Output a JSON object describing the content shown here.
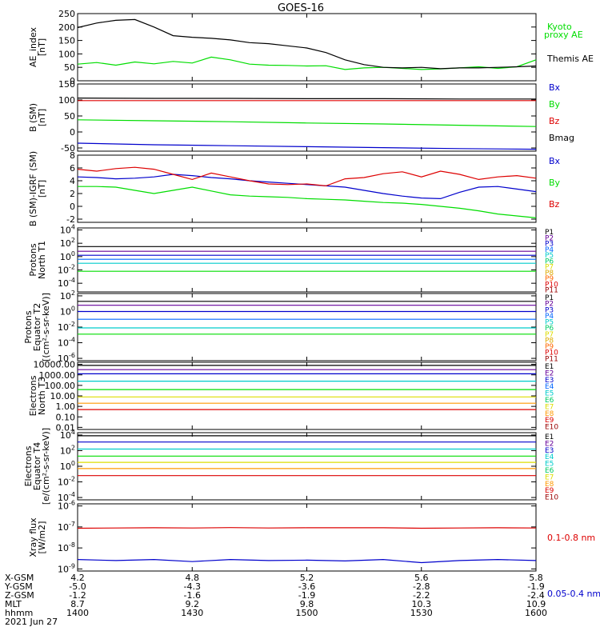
{
  "title": "GOES-16",
  "footer": {
    "row_labels": [
      "X-GSM",
      "Y-GSM",
      "Z-GSM",
      "MLT",
      "hhmm"
    ],
    "date": "2021 Jun 27",
    "columns": [
      [
        "4.2",
        "-5.0",
        "-1.2",
        "8.7",
        "1400"
      ],
      [
        "4.8",
        "-4.3",
        "-1.6",
        "9.2",
        "1430"
      ],
      [
        "5.2",
        "-3.6",
        "-1.9",
        "9.8",
        "1500"
      ],
      [
        "5.6",
        "-2.8",
        "-2.2",
        "10.3",
        "1530"
      ],
      [
        "5.8",
        "-1.9",
        "-2.4",
        "10.9",
        "1600"
      ]
    ]
  },
  "colors": {
    "black": "#000000",
    "green": "#00dd00",
    "blue": "#0000cc",
    "red": "#dd0000",
    "cyan": "#00cccc",
    "yellow": "#dddd00",
    "orange": "#ff9900",
    "purple": "#660099",
    "darkred": "#990000",
    "navy": "#000080"
  },
  "chart_data": [
    {
      "type": "line",
      "ylabel": [
        "AE_index",
        "[nT]"
      ],
      "ylim": [
        0,
        250
      ],
      "yticks": [
        "0",
        "50",
        "100",
        "150",
        "200",
        "250"
      ],
      "x": [
        0,
        5,
        10,
        15,
        20,
        25,
        30,
        35,
        40,
        45,
        50,
        55,
        60,
        65,
        70,
        75,
        80,
        85,
        90,
        95,
        100,
        105,
        110,
        115,
        120
      ],
      "series": [
        {
          "name": "Kyoto proxy AE",
          "color": "#00dd00",
          "values": [
            62,
            68,
            58,
            70,
            63,
            72,
            66,
            88,
            78,
            62,
            58,
            57,
            55,
            56,
            42,
            48,
            50,
            46,
            42,
            44,
            48,
            52,
            46,
            52,
            78
          ]
        },
        {
          "name": "Themis AE",
          "color": "#000000",
          "values": [
            198,
            215,
            225,
            228,
            200,
            168,
            162,
            158,
            152,
            142,
            138,
            130,
            122,
            105,
            78,
            60,
            50,
            48,
            50,
            45,
            48,
            48,
            50,
            52,
            55
          ]
        }
      ]
    },
    {
      "type": "line",
      "ylabel": [
        "B (SM)",
        "[nT]"
      ],
      "ylim": [
        -60,
        150
      ],
      "yticks": [
        "-50",
        "0",
        "50",
        "100",
        "150"
      ],
      "x": [
        0,
        20,
        40,
        60,
        80,
        100,
        120
      ],
      "series": [
        {
          "name": "Bx",
          "color": "#0000cc",
          "values": [
            -35,
            -40,
            -43,
            -46,
            -49,
            -52,
            -54
          ]
        },
        {
          "name": "By",
          "color": "#00dd00",
          "values": [
            38,
            35,
            32,
            28,
            25,
            21,
            17
          ]
        },
        {
          "name": "Bz",
          "color": "#dd0000",
          "values": [
            98,
            98,
            98,
            98,
            98,
            98,
            98
          ]
        },
        {
          "name": "Bmag",
          "color": "#000000",
          "values": [
            106,
            105,
            105,
            104,
            104,
            103,
            103
          ]
        }
      ]
    },
    {
      "type": "line",
      "ylabel": [
        "B (SM)-IGRF (SM)",
        "[nT]"
      ],
      "ylim": [
        -2.5,
        8
      ],
      "yticks": [
        "-2",
        "0",
        "2",
        "4",
        "6",
        "8"
      ],
      "x": [
        0,
        5,
        10,
        15,
        20,
        25,
        30,
        35,
        40,
        45,
        50,
        55,
        60,
        65,
        70,
        75,
        80,
        85,
        90,
        95,
        100,
        105,
        110,
        115,
        120
      ],
      "series": [
        {
          "name": "Bx",
          "color": "#0000cc",
          "values": [
            4.6,
            4.5,
            4.3,
            4.4,
            4.6,
            5.0,
            4.8,
            4.5,
            4.3,
            4.0,
            3.8,
            3.6,
            3.4,
            3.2,
            3.0,
            2.5,
            2.0,
            1.6,
            1.3,
            1.2,
            2.2,
            3.0,
            3.1,
            2.7,
            2.3
          ]
        },
        {
          "name": "By",
          "color": "#00dd00",
          "values": [
            3.1,
            3.1,
            3.0,
            2.5,
            2.0,
            2.5,
            3.0,
            2.4,
            1.8,
            1.6,
            1.5,
            1.4,
            1.2,
            1.1,
            1.0,
            0.8,
            0.6,
            0.5,
            0.3,
            0.0,
            -0.3,
            -0.7,
            -1.2,
            -1.5,
            -1.8
          ]
        },
        {
          "name": "Bz",
          "color": "#dd0000",
          "values": [
            5.8,
            5.5,
            5.9,
            6.1,
            5.8,
            5.0,
            4.2,
            5.2,
            4.6,
            4.0,
            3.5,
            3.4,
            3.5,
            3.2,
            4.3,
            4.5,
            5.1,
            5.4,
            4.6,
            5.5,
            5.0,
            4.2,
            4.6,
            4.8,
            4.4
          ]
        }
      ]
    },
    {
      "type": "line",
      "ylabel": [
        "Protons",
        "North T1"
      ],
      "yscale": "log",
      "ylim": [
        -5.3,
        4.3
      ],
      "yticks": [
        {
          "exp": 4,
          "label": "10^4"
        },
        {
          "exp": 2,
          "label": "10^2"
        },
        {
          "exp": 0,
          "label": "10^0"
        },
        {
          "exp": -2,
          "label": "10^-2"
        },
        {
          "exp": -4,
          "label": "10^-4"
        }
      ],
      "x": [
        0,
        120
      ],
      "series": [
        {
          "name": "P1",
          "color": "#000000",
          "values": [
            1.5,
            1.5
          ]
        },
        {
          "name": "P2",
          "color": "#660099",
          "values": [
            0.8,
            0.8
          ]
        },
        {
          "name": "P3",
          "color": "#0000cc",
          "values": [
            0.2,
            0.2
          ]
        },
        {
          "name": "P4",
          "color": "#0066ff",
          "values": [
            -0.4,
            -0.4
          ]
        },
        {
          "name": "P5",
          "color": "#00cccc",
          "values": [
            -1.0,
            -1.0
          ]
        },
        {
          "name": "P6",
          "color": "#00dd00",
          "values": [
            -2.2,
            -2.2
          ]
        }
      ],
      "legend": [
        {
          "label": "P1",
          "color": "#000000"
        },
        {
          "label": "P2",
          "color": "#660099"
        },
        {
          "label": "P3",
          "color": "#0000cc"
        },
        {
          "label": "P4",
          "color": "#0066ff"
        },
        {
          "label": "P5",
          "color": "#00cccc"
        },
        {
          "label": "P6",
          "color": "#00cc66"
        },
        {
          "label": "P7",
          "color": "#dddd00"
        },
        {
          "label": "P8",
          "color": "#ddaa00"
        },
        {
          "label": "P9",
          "color": "#ff6600"
        },
        {
          "label": "P10",
          "color": "#dd0000"
        },
        {
          "label": "P11",
          "color": "#990000"
        }
      ]
    },
    {
      "type": "line",
      "ylabel": [
        "Protons",
        "Equator T2",
        "[(cm²-s-sr-keV)]"
      ],
      "yscale": "log",
      "ylim": [
        -6.3,
        2.3
      ],
      "yticks": [
        {
          "exp": 2,
          "label": "10^2"
        },
        {
          "exp": 0,
          "label": "10^0"
        },
        {
          "exp": -2,
          "label": "10^-2"
        },
        {
          "exp": -4,
          "label": "10^-4"
        },
        {
          "exp": -6,
          "label": "10^-6"
        }
      ],
      "x": [
        0,
        120
      ],
      "series": [
        {
          "name": "P1",
          "color": "#000000",
          "values": [
            1.3,
            1.3
          ]
        },
        {
          "name": "P2",
          "color": "#660099",
          "values": [
            0.8,
            0.8
          ]
        },
        {
          "name": "P3",
          "color": "#0000cc",
          "values": [
            0.0,
            0.0
          ]
        },
        {
          "name": "P4",
          "color": "#0066ff",
          "values": [
            -1.0,
            -1.0
          ]
        },
        {
          "name": "P5",
          "color": "#00cccc",
          "values": [
            -2.1,
            -2.1
          ]
        },
        {
          "name": "P6",
          "color": "#00dd00",
          "values": [
            -2.9,
            -2.9
          ]
        }
      ],
      "legend": [
        {
          "label": "P1",
          "color": "#000000"
        },
        {
          "label": "P2",
          "color": "#660099"
        },
        {
          "label": "P3",
          "color": "#0000cc"
        },
        {
          "label": "P4",
          "color": "#0066ff"
        },
        {
          "label": "P5",
          "color": "#00cccc"
        },
        {
          "label": "P6",
          "color": "#00cc66"
        },
        {
          "label": "P7",
          "color": "#dddd00"
        },
        {
          "label": "P8",
          "color": "#ddaa00"
        },
        {
          "label": "P9",
          "color": "#ff6600"
        },
        {
          "label": "P10",
          "color": "#dd0000"
        },
        {
          "label": "P11",
          "color": "#990000"
        }
      ]
    },
    {
      "type": "line",
      "ylabel": [
        "Electrons",
        "North T3"
      ],
      "yscale": "log",
      "ylim": [
        -2.2,
        4.2
      ],
      "yticks": [
        {
          "exp": 4,
          "label": "10000.00"
        },
        {
          "exp": 3,
          "label": "1000.00"
        },
        {
          "exp": 2,
          "label": "100.00"
        },
        {
          "exp": 1,
          "label": "10.00"
        },
        {
          "exp": 0,
          "label": "1.00"
        },
        {
          "exp": -1,
          "label": "0.10"
        },
        {
          "exp": -2,
          "label": "0.01"
        }
      ],
      "x": [
        0,
        120
      ],
      "series": [
        {
          "name": "E1",
          "color": "#000000",
          "values": [
            3.9,
            3.9
          ]
        },
        {
          "name": "E2",
          "color": "#660099",
          "values": [
            3.5,
            3.5
          ]
        },
        {
          "name": "E3",
          "color": "#0000cc",
          "values": [
            3.1,
            3.1
          ]
        },
        {
          "name": "E4",
          "color": "#00cccc",
          "values": [
            2.4,
            2.4
          ]
        },
        {
          "name": "E5",
          "color": "#00dd00",
          "values": [
            1.6,
            1.6
          ]
        },
        {
          "name": "E6",
          "color": "#dddd00",
          "values": [
            0.9,
            0.9
          ]
        },
        {
          "name": "E7",
          "color": "#ff9900",
          "values": [
            0.3,
            0.3
          ]
        },
        {
          "name": "E8",
          "color": "#dd0000",
          "values": [
            -0.3,
            -0.3
          ]
        }
      ],
      "legend": [
        {
          "label": "E1",
          "color": "#000000"
        },
        {
          "label": "E2",
          "color": "#660099"
        },
        {
          "label": "E3",
          "color": "#0000cc"
        },
        {
          "label": "E4",
          "color": "#0066ff"
        },
        {
          "label": "E5",
          "color": "#00cccc"
        },
        {
          "label": "E6",
          "color": "#00cc66"
        },
        {
          "label": "E7",
          "color": "#dddd00"
        },
        {
          "label": "E8",
          "color": "#ff9900"
        },
        {
          "label": "E9",
          "color": "#dd0000"
        },
        {
          "label": "E10",
          "color": "#990000"
        }
      ]
    },
    {
      "type": "line",
      "ylabel": [
        "Electrons",
        "Equator T4",
        "[e/(cm²-s-sr-keV)]"
      ],
      "yscale": "log",
      "ylim": [
        -4.3,
        4.3
      ],
      "yticks": [
        {
          "exp": 4,
          "label": "10^4"
        },
        {
          "exp": 2,
          "label": "10^2"
        },
        {
          "exp": 0,
          "label": "10^0"
        },
        {
          "exp": -2,
          "label": "10^-2"
        },
        {
          "exp": -4,
          "label": "10^-4"
        }
      ],
      "x": [
        0,
        120
      ],
      "series": [
        {
          "name": "E1",
          "color": "#000000",
          "values": [
            3.9,
            3.9
          ]
        },
        {
          "name": "E2",
          "color": "#0000cc",
          "values": [
            3.1,
            3.1
          ]
        },
        {
          "name": "E3",
          "color": "#00cccc",
          "values": [
            2.2,
            2.2
          ]
        },
        {
          "name": "E4",
          "color": "#00dd00",
          "values": [
            1.3,
            1.3
          ]
        },
        {
          "name": "E5",
          "color": "#dddd00",
          "values": [
            0.5,
            0.5
          ]
        },
        {
          "name": "E6",
          "color": "#ff9900",
          "values": [
            -0.3,
            -0.3
          ]
        },
        {
          "name": "E7",
          "color": "#dd0000",
          "values": [
            -1.2,
            -1.2
          ]
        }
      ],
      "legend": [
        {
          "label": "E1",
          "color": "#000000"
        },
        {
          "label": "E2",
          "color": "#660099"
        },
        {
          "label": "E3",
          "color": "#0000cc"
        },
        {
          "label": "E4",
          "color": "#00cccc"
        },
        {
          "label": "E5",
          "color": "#00cccc"
        },
        {
          "label": "E6",
          "color": "#00cc66"
        },
        {
          "label": "E7",
          "color": "#dddd00"
        },
        {
          "label": "E8",
          "color": "#ff9900"
        },
        {
          "label": "E9",
          "color": "#dd0000"
        },
        {
          "label": "E10",
          "color": "#990000"
        }
      ]
    },
    {
      "type": "line",
      "ylabel": [
        "Xray flux",
        "[W/m2]"
      ],
      "yscale": "log",
      "ylim": [
        -9.1,
        -5.9
      ],
      "yticks": [
        {
          "exp": -6,
          "label": "10^-6"
        },
        {
          "exp": -7,
          "label": "10^-7"
        },
        {
          "exp": -8,
          "label": "10^-8"
        },
        {
          "exp": -9,
          "label": "10^-9"
        }
      ],
      "x": [
        0,
        10,
        20,
        30,
        40,
        50,
        60,
        70,
        80,
        90,
        100,
        110,
        120
      ],
      "series": [
        {
          "name": "0.1-0.8 nm",
          "color": "#dd0000",
          "values": [
            -7.06,
            -7.05,
            -7.04,
            -7.05,
            -7.03,
            -7.05,
            -7.04,
            -7.04,
            -7.04,
            -7.06,
            -7.05,
            -7.04,
            -7.05
          ]
        },
        {
          "name": "0.05-0.4 nm",
          "color": "#0000cc",
          "values": [
            -8.55,
            -8.6,
            -8.55,
            -8.65,
            -8.55,
            -8.6,
            -8.58,
            -8.62,
            -8.55,
            -8.7,
            -8.6,
            -8.55,
            -8.6
          ]
        }
      ]
    }
  ]
}
